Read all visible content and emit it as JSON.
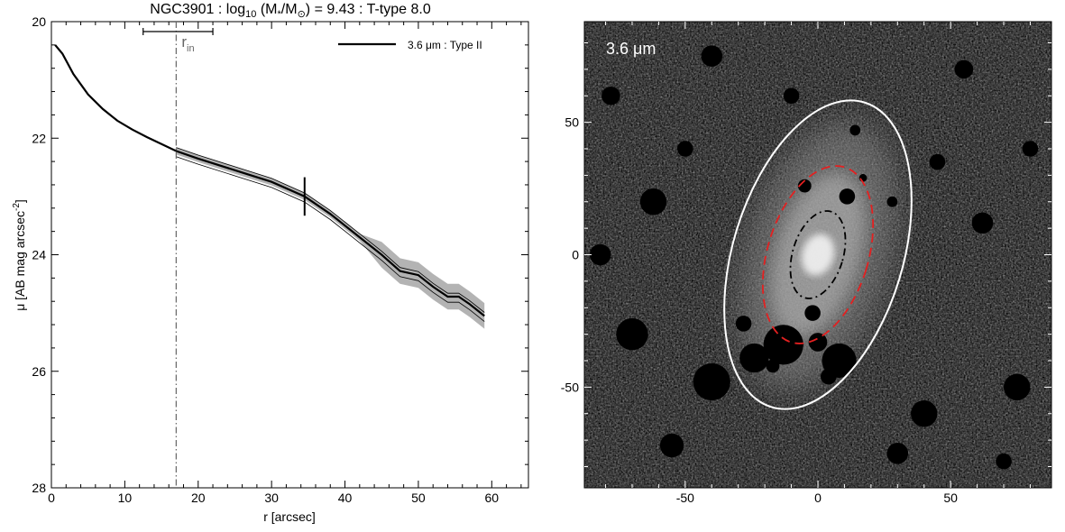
{
  "title": {
    "galaxy": "NGC3901",
    "mass_label_pre": "log",
    "mass_label_sub": "10",
    "mass_label_expr": "(M",
    "mass_label_star_sub": "*",
    "mass_label_div": "/M",
    "mass_label_sun_sub": "⊙",
    "mass_label_close": ")",
    "mass_value": "= 9.43",
    "ttype": "T-type 8.0",
    "separator": ":"
  },
  "chart_data": [
    {
      "type": "line",
      "xlabel": "r [arcsec]",
      "ylabel_main": "μ [AB mag arcsec",
      "ylabel_sup": "-2",
      "ylabel_close": "]",
      "xlim": [
        0,
        65
      ],
      "ylim": [
        28,
        20
      ],
      "y_inverted": true,
      "xticks": [
        "0",
        "10",
        "20",
        "30",
        "40",
        "50",
        "60"
      ],
      "yticks": [
        "20",
        "22",
        "24",
        "26",
        "28"
      ],
      "legend": {
        "label": "3.6 μm : Type II",
        "placement": "top-right"
      },
      "series": [
        {
          "name": "3.6 μm : Type II",
          "x": [
            0.5,
            1.5,
            3,
            5,
            7,
            9,
            11,
            13,
            15,
            17,
            20,
            25,
            30,
            34.5,
            38,
            42,
            45,
            47.5,
            50,
            52,
            54,
            55.5,
            57,
            59
          ],
          "y": [
            20.4,
            20.55,
            20.9,
            21.25,
            21.5,
            21.7,
            21.85,
            21.98,
            22.1,
            22.22,
            22.35,
            22.55,
            22.75,
            23.0,
            23.3,
            23.7,
            24.0,
            24.28,
            24.35,
            24.55,
            24.72,
            24.72,
            24.85,
            25.05
          ]
        }
      ],
      "uncertainty": {
        "lower_offset": 0.06,
        "upper_offset": 0.06,
        "upper_wide_from_x": 45,
        "upper_wide_offset": 0.22
      },
      "r_in": {
        "x": 17,
        "label": "r",
        "label_sub": "in",
        "err_low": 12.5,
        "err_high": 22
      },
      "break": {
        "x": 34.5,
        "y": 23.0
      }
    },
    {
      "type": "heatmap",
      "band_label": "3.6 μm",
      "xlim": [
        -88,
        88
      ],
      "ylim": [
        -88,
        88
      ],
      "xticks": [
        "-50",
        "0",
        "50"
      ],
      "yticks": [
        "50",
        "0",
        "-50"
      ],
      "ellipses": [
        {
          "name": "outer",
          "color": "#ffffff",
          "style": "solid",
          "a": 60,
          "b": 32,
          "pa_deg": 17
        },
        {
          "name": "break",
          "color": "#e32020",
          "style": "dashed",
          "a": 34.5,
          "b": 19,
          "pa_deg": 17
        },
        {
          "name": "r_in",
          "color": "#000000",
          "style": "dashdot",
          "a": 17,
          "b": 9.5,
          "pa_deg": 17
        }
      ],
      "mask_blobs": [
        [
          -13,
          -34,
          7.5
        ],
        [
          -24,
          -39,
          5.5
        ],
        [
          8,
          -40,
          6.5
        ],
        [
          0,
          -33,
          3.5
        ],
        [
          -2,
          -22,
          3
        ],
        [
          4,
          -46,
          3
        ],
        [
          11,
          22,
          3
        ],
        [
          14,
          47,
          2
        ],
        [
          -5,
          26,
          2.5
        ],
        [
          -17,
          -42,
          2.5
        ],
        [
          -28,
          -26,
          3
        ],
        [
          -62,
          20,
          5
        ],
        [
          -70,
          -30,
          6
        ],
        [
          -40,
          -48,
          7
        ],
        [
          -55,
          -72,
          4.5
        ],
        [
          40,
          -60,
          5
        ],
        [
          62,
          12,
          4
        ],
        [
          75,
          -50,
          5
        ],
        [
          -40,
          75,
          4
        ],
        [
          55,
          70,
          3.5
        ],
        [
          28,
          20,
          2
        ],
        [
          17,
          29,
          1.5
        ],
        [
          -82,
          0,
          4
        ],
        [
          80,
          40,
          3
        ],
        [
          -10,
          60,
          3
        ],
        [
          30,
          -75,
          4
        ],
        [
          -78,
          60,
          3.5
        ],
        [
          70,
          -78,
          3
        ],
        [
          45,
          35,
          3
        ],
        [
          -50,
          40,
          3
        ]
      ]
    }
  ]
}
